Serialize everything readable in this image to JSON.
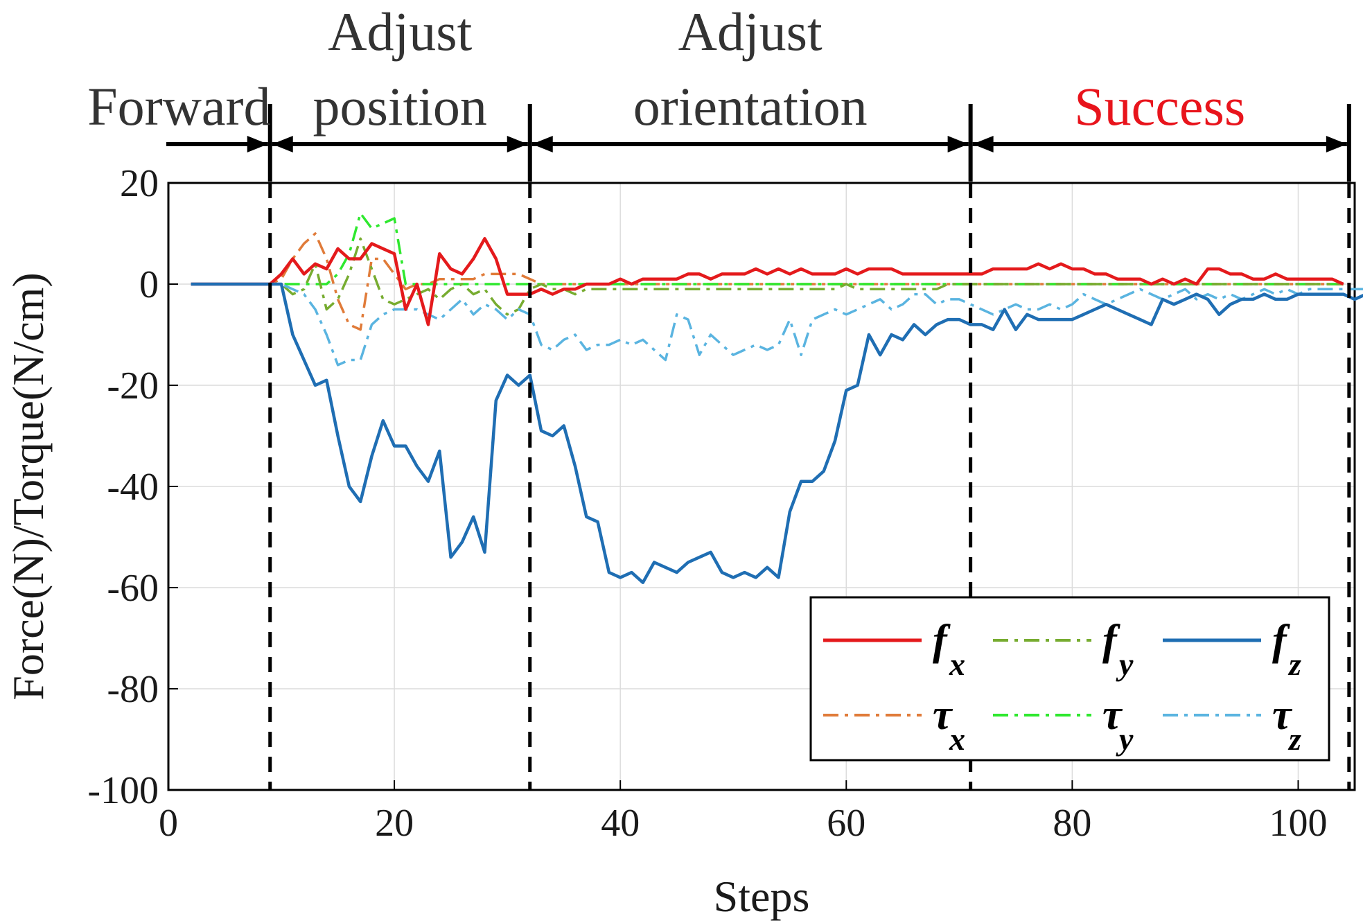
{
  "chart_data": {
    "type": "line",
    "title": "",
    "xlabel": "Steps",
    "ylabel": "Force(N)/Torque(N/cm)",
    "xlim": [
      0,
      105
    ],
    "ylim": [
      -100,
      20
    ],
    "xticks": [
      "0",
      "20",
      "40",
      "60",
      "80",
      "100"
    ],
    "yticks": [
      "20",
      "0",
      "-20",
      "-40",
      "-60",
      "-80",
      "-100"
    ],
    "grid": true,
    "legend_position": "bottom-right",
    "phase_boundaries": [
      9,
      32,
      71,
      104.5
    ],
    "phases": [
      {
        "label_lines": [
          "Forward"
        ],
        "color": "#333333"
      },
      {
        "label_lines": [
          "Adjust",
          "position"
        ],
        "color": "#333333"
      },
      {
        "label_lines": [
          "Adjust",
          "orientation"
        ],
        "color": "#333333"
      },
      {
        "label_lines": [
          "Success"
        ],
        "color": "#e8141c"
      }
    ],
    "series": [
      {
        "symbol": "f",
        "sub": "x",
        "color": "#e41a1c",
        "dash": "solid",
        "x_start": 2,
        "values": [
          0,
          0,
          0,
          0,
          0,
          0,
          0,
          0,
          2,
          5,
          2,
          4,
          3,
          7,
          5,
          5,
          8,
          7,
          6,
          -5,
          0,
          -8,
          6,
          3,
          2,
          5,
          9,
          5,
          -2,
          -2,
          -2,
          -1,
          -2,
          -1,
          -1,
          0,
          0,
          0,
          1,
          0,
          1,
          1,
          1,
          1,
          2,
          2,
          1,
          2,
          2,
          2,
          3,
          2,
          3,
          2,
          3,
          2,
          2,
          2,
          3,
          2,
          3,
          3,
          3,
          2,
          2,
          2,
          2,
          2,
          2,
          2,
          2,
          3,
          3,
          3,
          3,
          4,
          3,
          4,
          3,
          3,
          2,
          2,
          1,
          1,
          1,
          0,
          1,
          0,
          1,
          0,
          3,
          3,
          2,
          2,
          1,
          1,
          2,
          1,
          1,
          1,
          1,
          1,
          0
        ]
      },
      {
        "symbol": "f",
        "sub": "y",
        "color": "#77ac30",
        "dash": "dashdot",
        "x_start": 2,
        "values": [
          0,
          0,
          0,
          0,
          0,
          0,
          0,
          0,
          0,
          -2,
          -1,
          4,
          -5,
          -3,
          2,
          9,
          3,
          -3,
          -4,
          -3,
          -2,
          -1,
          -3,
          -1,
          0,
          -2,
          -1,
          -4,
          -6,
          -5,
          -1,
          0,
          -1,
          -1,
          -2,
          -1,
          -1,
          -1,
          -1,
          -1,
          -1,
          -1,
          -1,
          -1,
          -1,
          -1,
          -1,
          -1,
          -1,
          -1,
          -1,
          -1,
          -1,
          -1,
          -1,
          -1,
          -1,
          -1,
          0,
          -1,
          -1,
          -1,
          -1,
          -1,
          -1,
          -1,
          -1,
          0,
          0,
          0,
          0,
          0,
          0,
          0,
          0,
          0,
          0,
          0,
          0,
          0,
          0,
          0,
          0,
          0,
          0,
          0,
          0,
          0,
          0,
          0,
          0,
          0,
          0,
          0,
          0,
          0,
          0,
          0,
          0,
          0,
          0,
          0,
          0
        ]
      },
      {
        "symbol": "f",
        "sub": "z",
        "color": "#1f6eb3",
        "dash": "solid",
        "x_start": 2,
        "values": [
          0,
          0,
          0,
          0,
          0,
          0,
          0,
          0,
          0,
          -10,
          -15,
          -20,
          -19,
          -30,
          -40,
          -43,
          -34,
          -27,
          -32,
          -32,
          -36,
          -39,
          -33,
          -54,
          -51,
          -46,
          -53,
          -23,
          -18,
          -20,
          -18,
          -29,
          -30,
          -28,
          -36,
          -46,
          -47,
          -57,
          -58,
          -57,
          -59,
          -55,
          -56,
          -57,
          -55,
          -54,
          -53,
          -57,
          -58,
          -57,
          -58,
          -56,
          -58,
          -45,
          -39,
          -39,
          -37,
          -31,
          -21,
          -20,
          -10,
          -14,
          -10,
          -11,
          -8,
          -10,
          -8,
          -7,
          -7,
          -8,
          -8,
          -9,
          -5,
          -9,
          -6,
          -7,
          -7,
          -7,
          -7,
          -6,
          -5,
          -4,
          -5,
          -6,
          -7,
          -8,
          -3,
          -4,
          -3,
          -2,
          -3,
          -6,
          -4,
          -3,
          -3,
          -2,
          -3,
          -3,
          -2,
          -2,
          -2,
          -2,
          -2,
          -3,
          -2,
          -1
        ]
      },
      {
        "symbol": "τ",
        "sub": "x",
        "color": "#e07b39",
        "dash": "dashdot",
        "x_start": 2,
        "values": [
          0,
          0,
          0,
          0,
          0,
          0,
          0,
          0,
          1,
          5,
          8,
          10,
          5,
          -3,
          -8,
          -9,
          5,
          5,
          2,
          -1,
          0,
          0,
          1,
          1,
          1,
          1,
          2,
          2,
          2,
          2,
          1,
          0,
          0,
          0,
          0,
          0,
          0,
          0,
          0,
          0,
          0,
          0,
          0,
          0,
          0,
          0,
          0,
          0,
          0,
          0,
          0,
          0,
          0,
          0,
          0,
          0,
          0,
          0,
          0,
          0,
          0,
          0,
          0,
          0,
          0,
          0,
          0,
          0,
          0,
          0,
          0,
          0,
          0,
          0,
          0,
          0,
          0,
          0,
          0,
          0,
          0,
          0,
          0,
          0,
          0,
          0,
          0,
          0,
          0,
          0,
          0,
          0,
          0,
          0,
          0,
          0,
          0,
          0,
          0,
          0,
          0,
          0,
          0
        ]
      },
      {
        "symbol": "τ",
        "sub": "y",
        "color": "#2ee82e",
        "dash": "dashdot",
        "x_start": 2,
        "values": [
          0,
          0,
          0,
          0,
          0,
          0,
          0,
          0,
          0,
          0,
          0,
          0,
          0,
          2,
          6,
          14,
          11,
          12,
          13,
          0,
          0,
          0,
          0,
          0,
          0,
          0,
          0,
          0,
          0,
          0,
          0,
          0,
          0,
          0,
          0,
          0,
          0,
          0,
          0,
          0,
          0,
          0,
          0,
          0,
          0,
          0,
          0,
          0,
          0,
          0,
          0,
          0,
          0,
          0,
          0,
          0,
          0,
          0,
          0,
          0,
          0,
          0,
          0,
          0,
          0,
          0,
          0,
          0,
          0,
          0,
          0,
          0,
          0,
          0,
          0,
          0,
          0,
          0,
          0,
          0,
          0,
          0,
          0,
          0,
          0,
          0,
          0,
          0,
          0,
          0,
          0,
          0,
          0,
          0,
          0,
          0,
          0,
          0,
          0,
          0,
          0,
          0,
          0
        ]
      },
      {
        "symbol": "τ",
        "sub": "z",
        "color": "#5ab4e0",
        "dash": "dashdot",
        "x_start": 2,
        "values": [
          0,
          0,
          0,
          0,
          0,
          0,
          0,
          0,
          0,
          -1,
          -2,
          -5,
          -10,
          -16,
          -15,
          -15,
          -8,
          -6,
          -5,
          -5,
          -5,
          -6,
          -7,
          -5,
          -3,
          -6,
          -4,
          -5,
          -7,
          -5,
          -6,
          -12,
          -13,
          -11,
          -10,
          -13,
          -12,
          -12,
          -11,
          -12,
          -11,
          -13,
          -15,
          -6,
          -7,
          -14,
          -10,
          -12,
          -14,
          -13,
          -12,
          -13,
          -12,
          -7,
          -14,
          -7,
          -6,
          -5,
          -6,
          -5,
          -4,
          -3,
          -5,
          -4,
          -2,
          -2,
          -4,
          -3,
          -3,
          -4,
          -5,
          -6,
          -5,
          -4,
          -5,
          -5,
          -4,
          -5,
          -4,
          -2,
          -3,
          -4,
          -3,
          -2,
          -1,
          -2,
          -3,
          -2,
          -1,
          -3,
          -2,
          -3,
          -2,
          -3,
          -2,
          -1,
          -2,
          -1,
          -2,
          -1,
          -1,
          -1,
          -1,
          -1,
          -1,
          -1
        ]
      }
    ]
  }
}
